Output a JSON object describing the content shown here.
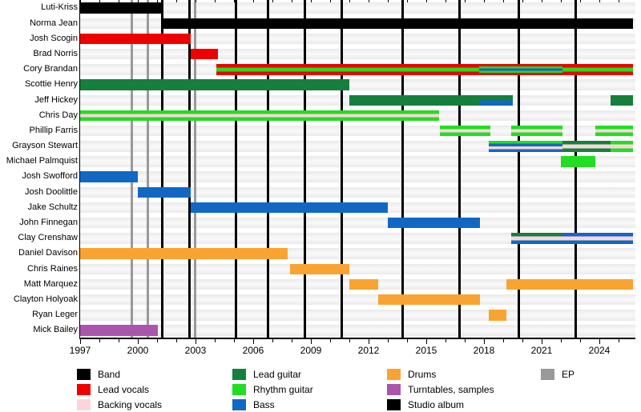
{
  "chart_data": {
    "type": "timeline",
    "description": "Band members timeline (Gantt-style) with studio album and EP release lines",
    "x_axis": {
      "start": 1997,
      "end": 2025.75,
      "major_tick_years": [
        1997,
        2000,
        2003,
        2006,
        2009,
        2012,
        2015,
        2018,
        2021,
        2024
      ],
      "minor_tick_interval": 1
    },
    "roles": {
      "band": "#000000",
      "lead_vocals": "#ee0000",
      "backing_vocals": "#fcd5da",
      "lead_guitar": "#157f3d",
      "rhythm_guitar": "#22dd22",
      "bass": "#1168c4",
      "drums": "#f9a432",
      "turntables": "#ab55ad",
      "studio_album": "#000000",
      "ep": "#999999"
    },
    "members": [
      {
        "name": "Luti-Kriss",
        "segments": [
          {
            "start": 1997.0,
            "end": 2001.35,
            "stripes": [
              "band"
            ]
          }
        ]
      },
      {
        "name": "Norma Jean",
        "segments": [
          {
            "start": 2001.35,
            "end": 2025.75,
            "stripes": [
              "band"
            ]
          }
        ]
      },
      {
        "name": "Josh Scogin",
        "segments": [
          {
            "start": 1997.0,
            "end": 2002.75,
            "stripes": [
              "lead_vocals"
            ]
          }
        ]
      },
      {
        "name": "Brad Norris",
        "segments": [
          {
            "start": 2002.75,
            "end": 2004.15,
            "stripes": [
              "lead_vocals"
            ]
          }
        ]
      },
      {
        "name": "Cory Brandan",
        "segments": [
          {
            "start": 2004.1,
            "end": 2017.75,
            "stripes": [
              "lead_vocals",
              "rhythm_guitar",
              "lead_vocals"
            ]
          },
          {
            "start": 2017.75,
            "end": 2022.1,
            "stripes": [
              "lead_vocals",
              "rhythm_guitar",
              "bass",
              "rhythm_guitar",
              "lead_vocals"
            ]
          },
          {
            "start": 2022.1,
            "end": 2025.75,
            "stripes": [
              "lead_vocals",
              "rhythm_guitar",
              "lead_vocals"
            ]
          }
        ]
      },
      {
        "name": "Scottie Henry",
        "segments": [
          {
            "start": 1997.0,
            "end": 2011.0,
            "stripes": [
              "lead_guitar"
            ]
          }
        ]
      },
      {
        "name": "Jeff Hickey",
        "segments": [
          {
            "start": 2011.0,
            "end": 2017.75,
            "stripes": [
              "lead_guitar"
            ]
          },
          {
            "start": 2017.75,
            "end": 2019.5,
            "stripes": [
              "lead_guitar",
              "bass"
            ]
          },
          {
            "start": 2024.6,
            "end": 2025.75,
            "stripes": [
              "lead_guitar"
            ]
          }
        ]
      },
      {
        "name": "Chris Day",
        "segments": [
          {
            "start": 1997.0,
            "end": 2015.67,
            "stripes": [
              "rhythm_guitar",
              "backing_vocals",
              "rhythm_guitar"
            ]
          }
        ]
      },
      {
        "name": "Phillip Farris",
        "segments": [
          {
            "start": 2015.7,
            "end": 2018.33,
            "stripes": [
              "rhythm_guitar",
              "backing_vocals",
              "rhythm_guitar"
            ]
          },
          {
            "start": 2019.4,
            "end": 2022.1,
            "stripes": [
              "rhythm_guitar",
              "backing_vocals",
              "rhythm_guitar"
            ]
          },
          {
            "start": 2023.8,
            "end": 2025.75,
            "stripes": [
              "rhythm_guitar",
              "backing_vocals",
              "rhythm_guitar"
            ]
          }
        ]
      },
      {
        "name": "Grayson Stewart",
        "segments": [
          {
            "start": 2018.25,
            "end": 2022.1,
            "stripes": [
              "rhythm_guitar",
              "bass",
              "backing_vocals",
              "bass"
            ]
          },
          {
            "start": 2022.1,
            "end": 2024.6,
            "stripes": [
              "lead_guitar",
              "backing_vocals",
              "lead_guitar"
            ]
          },
          {
            "start": 2024.6,
            "end": 2025.75,
            "stripes": [
              "rhythm_guitar",
              "backing_vocals",
              "rhythm_guitar"
            ]
          }
        ]
      },
      {
        "name": "Michael Palmquist",
        "segments": [
          {
            "start": 2022.0,
            "end": 2023.8,
            "stripes": [
              "rhythm_guitar"
            ]
          }
        ]
      },
      {
        "name": "Josh Swofford",
        "segments": [
          {
            "start": 1997.0,
            "end": 2000.0,
            "stripes": [
              "bass"
            ]
          }
        ]
      },
      {
        "name": "Josh Doolittle",
        "segments": [
          {
            "start": 2000.0,
            "end": 2002.75,
            "stripes": [
              "bass"
            ]
          }
        ]
      },
      {
        "name": "Jake Schultz",
        "segments": [
          {
            "start": 2002.75,
            "end": 2013.0,
            "stripes": [
              "bass"
            ]
          }
        ]
      },
      {
        "name": "John Finnegan",
        "segments": [
          {
            "start": 2013.0,
            "end": 2017.8,
            "stripes": [
              "bass"
            ]
          }
        ]
      },
      {
        "name": "Clay Crenshaw",
        "segments": [
          {
            "start": 2019.4,
            "end": 2022.08,
            "stripes": [
              "lead_guitar",
              "backing_vocals",
              "bass"
            ]
          },
          {
            "start": 2022.08,
            "end": 2025.75,
            "stripes": [
              "bass",
              "backing_vocals",
              "bass"
            ]
          }
        ]
      },
      {
        "name": "Daniel Davison",
        "segments": [
          {
            "start": 1997.0,
            "end": 2007.8,
            "stripes": [
              "drums"
            ]
          }
        ]
      },
      {
        "name": "Chris Raines",
        "segments": [
          {
            "start": 2007.9,
            "end": 2011.0,
            "stripes": [
              "drums"
            ]
          }
        ]
      },
      {
        "name": "Matt Marquez",
        "segments": [
          {
            "start": 2011.0,
            "end": 2012.5,
            "stripes": [
              "drums"
            ]
          },
          {
            "start": 2019.17,
            "end": 2025.75,
            "stripes": [
              "drums"
            ]
          }
        ]
      },
      {
        "name": "Clayton Holyoak",
        "segments": [
          {
            "start": 2012.5,
            "end": 2017.8,
            "stripes": [
              "drums"
            ]
          }
        ]
      },
      {
        "name": "Ryan Leger",
        "segments": [
          {
            "start": 2018.25,
            "end": 2019.17,
            "stripes": [
              "drums"
            ]
          }
        ]
      },
      {
        "name": "Mick Bailey",
        "segments": [
          {
            "start": 1997.0,
            "end": 2001.05,
            "stripes": [
              "turntables"
            ]
          }
        ]
      }
    ],
    "releases": {
      "studio_albums": [
        2001.25,
        2002.67,
        2005.12,
        2006.79,
        2008.67,
        2010.62,
        2013.79,
        2016.71,
        2019.83,
        2022.75
      ],
      "eps": [
        1999.7,
        2000.54,
        2002.96
      ]
    },
    "legend": [
      [
        {
          "label": "Band",
          "role": "band"
        },
        {
          "label": "Lead vocals",
          "role": "lead_vocals"
        },
        {
          "label": "Backing vocals",
          "role": "backing_vocals"
        }
      ],
      [
        {
          "label": "Lead guitar",
          "role": "lead_guitar"
        },
        {
          "label": "Rhythm guitar",
          "role": "rhythm_guitar"
        },
        {
          "label": "Bass",
          "role": "bass"
        }
      ],
      [
        {
          "label": "Drums",
          "role": "drums"
        },
        {
          "label": "Turntables, samples",
          "role": "turntables"
        },
        {
          "label": "Studio album",
          "role": "studio_album"
        }
      ],
      [
        {
          "label": "EP",
          "role": "ep"
        }
      ]
    ]
  }
}
